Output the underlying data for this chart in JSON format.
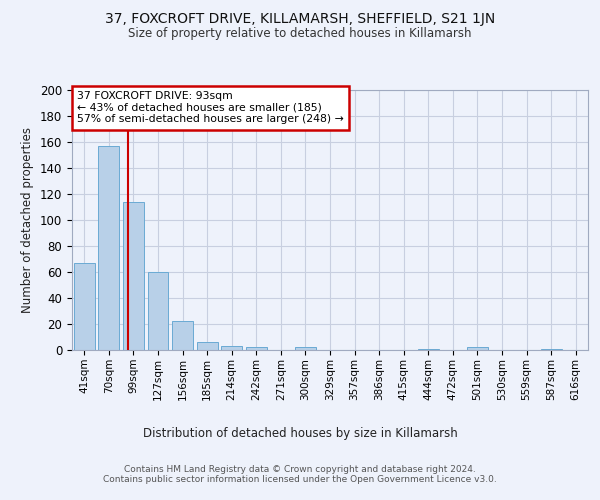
{
  "title1": "37, FOXCROFT DRIVE, KILLAMARSH, SHEFFIELD, S21 1JN",
  "title2": "Size of property relative to detached houses in Killamarsh",
  "xlabel": "Distribution of detached houses by size in Killamarsh",
  "ylabel": "Number of detached properties",
  "footnote": "Contains HM Land Registry data © Crown copyright and database right 2024.\nContains public sector information licensed under the Open Government Licence v3.0.",
  "bar_labels": [
    "41sqm",
    "70sqm",
    "99sqm",
    "127sqm",
    "156sqm",
    "185sqm",
    "214sqm",
    "242sqm",
    "271sqm",
    "300sqm",
    "329sqm",
    "357sqm",
    "386sqm",
    "415sqm",
    "444sqm",
    "472sqm",
    "501sqm",
    "530sqm",
    "559sqm",
    "587sqm",
    "616sqm"
  ],
  "bar_values": [
    67,
    157,
    114,
    60,
    22,
    6,
    3,
    2,
    0,
    2,
    0,
    0,
    0,
    0,
    1,
    0,
    2,
    0,
    0,
    1,
    0
  ],
  "bar_color": "#b8d0e8",
  "bar_edge_color": "#6aaad4",
  "property_label": "37 FOXCROFT DRIVE: 93sqm",
  "annotation_line1": "← 43% of detached houses are smaller (185)",
  "annotation_line2": "57% of semi-detached houses are larger (248) →",
  "vline_color": "#cc0000",
  "annotation_box_edge": "#cc0000",
  "ylim": [
    0,
    200
  ],
  "yticks": [
    0,
    20,
    40,
    60,
    80,
    100,
    120,
    140,
    160,
    180,
    200
  ],
  "bg_color": "#eef2fb",
  "plot_bg_color": "#eef2fb",
  "grid_color": "#c8cfe0"
}
